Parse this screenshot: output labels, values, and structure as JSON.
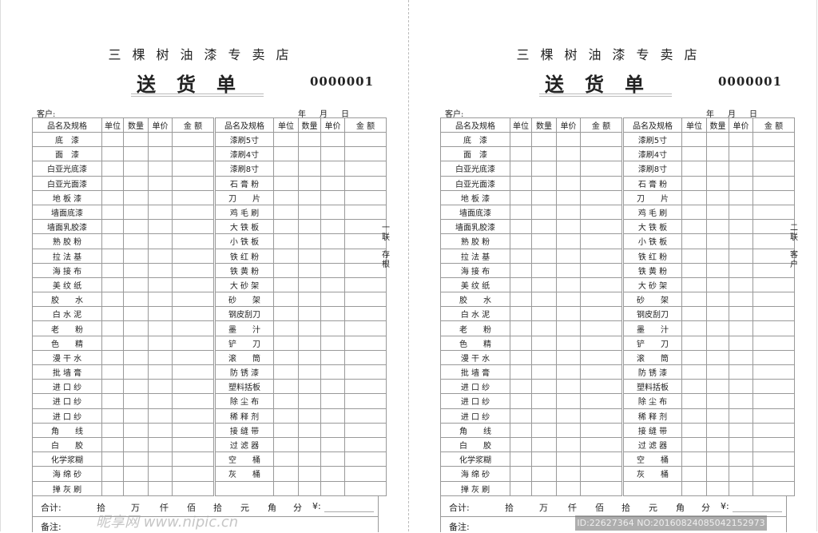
{
  "shop_name": "三棵树油漆专卖店",
  "title": "送货单",
  "customer_label": "客户:",
  "date_labels": [
    "年",
    "月",
    "日"
  ],
  "headers": [
    "品名及规格",
    "单位",
    "数量",
    "单价",
    "金 额",
    "品名及规格",
    "单位",
    "数量",
    "单价",
    "金 额"
  ],
  "items_left": [
    "底　漆",
    "面　漆",
    "白亚光底漆",
    "白亚光面漆",
    "地 板 漆",
    "墙面底漆",
    "墙面乳胶漆",
    "熟 胶 粉",
    "拉 法 基",
    "海 接 布",
    "美 纹 纸",
    "胶　　水",
    "白 水 泥",
    "老　　粉",
    "色　　精",
    "漫 干 水",
    "批 墙 膏",
    "进 口 纱",
    "进 口 纱",
    "进 口 纱",
    "角　　线",
    "白　　胶",
    "化学浆糊",
    "海 绵 砂",
    "掸 灰 刷"
  ],
  "items_right": [
    "漆刷5寸",
    "漆刷4寸",
    "漆刷8寸",
    "石 膏 粉",
    "刀　　片",
    "鸡 毛 刷",
    "大 铁 板",
    "小 铁 板",
    "铁 红 粉",
    "铁 黄 粉",
    "大 砂 架",
    "砂　　架",
    "钢皮刮刀",
    "墨　　汁",
    "铲　　刀",
    "滚　　筒",
    "防 锈 漆",
    "塑料括板",
    "除 尘 布",
    "稀 释 剂",
    "接 缝 带",
    "过 滤 器",
    "空　　桶",
    "灰　　桶",
    ""
  ],
  "total_label": "合计:",
  "total_units": [
    "拾",
    "万",
    "仟",
    "佰",
    "拾",
    "元",
    "角",
    "分",
    "¥:"
  ],
  "notes_label": "备注:",
  "panels": [
    {
      "serial": "0000001",
      "copy_no": "一联",
      "copy_name": "存根"
    },
    {
      "serial": "0000001",
      "copy_no": "二联",
      "copy_name": "客户"
    }
  ],
  "watermark_site": "昵享网 www.nipic.cn",
  "watermark_id": "ID:22627364 NO:20160824085042152973"
}
